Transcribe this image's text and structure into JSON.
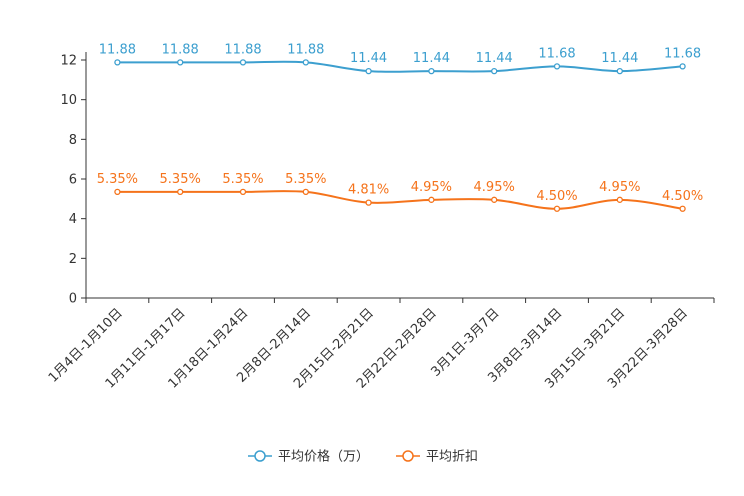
{
  "chart_data": {
    "type": "line",
    "categories": [
      "1月4日-1月10日",
      "1月11日-1月17日",
      "1月18日-1月24日",
      "2月8日-2月14日",
      "2月15日-2月21日",
      "2月22日-2月28日",
      "3月1日-3月7日",
      "3月8日-3月14日",
      "3月15日-3月21日",
      "3月22日-3月28日"
    ],
    "ylim": [
      0,
      12
    ],
    "yticks": [
      0,
      2,
      4,
      6,
      8,
      10,
      12
    ],
    "series": [
      {
        "name": "平均价格（万）",
        "color": "#3c9fcf",
        "values": [
          11.88,
          11.88,
          11.88,
          11.88,
          11.44,
          11.44,
          11.44,
          11.68,
          11.44,
          11.68
        ],
        "labels": [
          "11.88",
          "11.88",
          "11.88",
          "11.88",
          "11.44",
          "11.44",
          "11.44",
          "11.68",
          "11.44",
          "11.68"
        ]
      },
      {
        "name": "平均折扣",
        "color": "#f5731b",
        "values": [
          5.35,
          5.35,
          5.35,
          5.35,
          4.81,
          4.95,
          4.95,
          4.5,
          4.95,
          4.5
        ],
        "labels": [
          "5.35%",
          "5.35%",
          "5.35%",
          "5.35%",
          "4.81%",
          "4.95%",
          "4.95%",
          "4.50%",
          "4.95%",
          "4.50%"
        ]
      }
    ],
    "title": "",
    "xlabel": "",
    "ylabel": "",
    "legend_position": "bottom-center"
  }
}
